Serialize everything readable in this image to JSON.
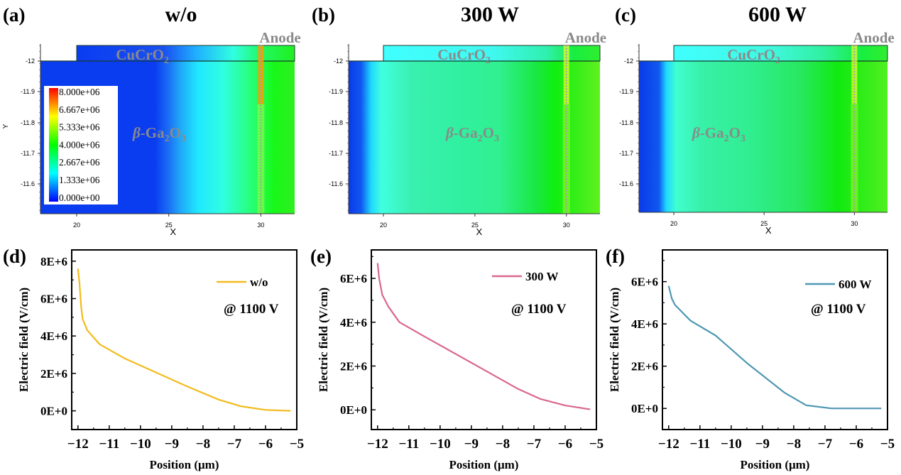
{
  "figure": {
    "panels_top": [
      {
        "label": "(a)",
        "title": "w/o",
        "material_top": "CuCrO",
        "material_top_sub": "2",
        "material_body_pre": "β-Ga",
        "material_body_sub1": "2",
        "material_body_mid": "O",
        "material_body_sub2": "3",
        "anode": "Anode"
      },
      {
        "label": "(b)",
        "title": "300 W",
        "material_top": "CuCrO",
        "material_top_sub": "2",
        "material_body_pre": "β-Ga",
        "material_body_sub1": "2",
        "material_body_mid": "O",
        "material_body_sub2": "3",
        "anode": "Anode"
      },
      {
        "label": "(c)",
        "title": "600 W",
        "material_top": "CuCrO",
        "material_top_sub": "2",
        "material_body_pre": "β-Ga",
        "material_body_sub1": "2",
        "material_body_mid": "O",
        "material_body_sub2": "3",
        "anode": "Anode"
      }
    ],
    "panels_bottom_labels": [
      "(d)",
      "(e)",
      "(f)"
    ],
    "contour_axes": {
      "xlabel": "X",
      "ylabel": "Y",
      "xticks": [
        "20",
        "25",
        "30"
      ],
      "yticks": [
        "-12",
        "-11.9",
        "-11.8",
        "-11.7",
        "-11.6"
      ]
    },
    "colorbar": {
      "labels": [
        "8.000e+06",
        "6.667e+06",
        "5.333e+06",
        "4.000e+06",
        "2.667e+06",
        "1.333e+06",
        "0.000e+00"
      ],
      "colors": [
        "#ff0000",
        "#ff8000",
        "#ffff00",
        "#80ff00",
        "#00ff00",
        "#00ff80",
        "#00ffff",
        "#0080ff",
        "#0000ff"
      ]
    }
  },
  "chart_data": [
    {
      "type": "line",
      "panel": "(d)",
      "title": "",
      "xlabel": "Position (μm)",
      "ylabel": "Electric field (V/cm)",
      "xlim": [
        -12.2,
        -5
      ],
      "ylim": [
        -1000000,
        8600000
      ],
      "xticks": [
        "−12",
        "−11",
        "−10",
        "−9",
        "−8",
        "−7",
        "−6",
        "−5"
      ],
      "xtick_values": [
        -12,
        -11,
        -10,
        -9,
        -8,
        -7,
        -6,
        -5
      ],
      "yticks": [
        "0E+0",
        "2E+6",
        "4E+6",
        "6E+6",
        "8E+6"
      ],
      "ytick_values": [
        0,
        2000000,
        4000000,
        6000000,
        8000000
      ],
      "annotation": "@ 1100 V",
      "legend_position": "top-right",
      "series": [
        {
          "name": "w/o",
          "color": "#f2bb1d",
          "x": [
            -12.0,
            -11.95,
            -11.9,
            -11.85,
            -11.7,
            -11.3,
            -10.5,
            -9.5,
            -8.5,
            -7.5,
            -6.8,
            -6.0,
            -5.2
          ],
          "y": [
            7600000,
            6800000,
            5600000,
            4900000,
            4300000,
            3550000,
            2800000,
            2050000,
            1300000,
            600000,
            250000,
            50000,
            0
          ]
        }
      ]
    },
    {
      "type": "line",
      "panel": "(e)",
      "title": "",
      "xlabel": "Position (μm)",
      "ylabel": "Electric field (V/cm)",
      "xlim": [
        -12.2,
        -5
      ],
      "ylim": [
        -900000,
        7300000
      ],
      "xticks": [
        "−12",
        "−11",
        "−10",
        "−9",
        "−8",
        "−7",
        "−6",
        "−5"
      ],
      "xtick_values": [
        -12,
        -11,
        -10,
        -9,
        -8,
        -7,
        -6,
        -5
      ],
      "yticks": [
        "0E+0",
        "2E+6",
        "4E+6",
        "6E+6"
      ],
      "ytick_values": [
        0,
        2000000,
        4000000,
        6000000
      ],
      "annotation": "@ 1100 V",
      "legend_position": "top-right",
      "series": [
        {
          "name": "300 W",
          "color": "#d9668f",
          "x": [
            -12.0,
            -11.95,
            -11.85,
            -11.65,
            -11.3,
            -10.5,
            -9.5,
            -8.5,
            -7.5,
            -6.8,
            -6.0,
            -5.2
          ],
          "y": [
            6700000,
            6000000,
            5250000,
            4700000,
            4000000,
            3350000,
            2550000,
            1750000,
            950000,
            500000,
            200000,
            20000
          ]
        }
      ]
    },
    {
      "type": "line",
      "panel": "(f)",
      "title": "",
      "xlabel": "Position (μm)",
      "ylabel": "Electric field (V/cm)",
      "xlim": [
        -12.2,
        -5
      ],
      "ylim": [
        -1000000,
        7500000
      ],
      "xticks": [
        "−12",
        "−11",
        "−10",
        "−9",
        "−8",
        "−7",
        "−6",
        "−5"
      ],
      "xtick_values": [
        -12,
        -11,
        -10,
        -9,
        -8,
        -7,
        -6,
        -5
      ],
      "yticks": [
        "0E+0",
        "2E+6",
        "4E+6",
        "6E+6"
      ],
      "ytick_values": [
        0,
        2000000,
        4000000,
        6000000
      ],
      "annotation": "@ 1100 V",
      "legend_position": "top-right",
      "series": [
        {
          "name": "600 W",
          "color": "#4f97b3",
          "x": [
            -12.0,
            -11.9,
            -11.8,
            -11.3,
            -10.5,
            -9.5,
            -8.3,
            -7.6,
            -6.8,
            -6.0,
            -5.2
          ],
          "y": [
            5800000,
            5200000,
            4900000,
            4150000,
            3450000,
            2150000,
            750000,
            150000,
            0,
            0,
            0
          ]
        }
      ]
    }
  ]
}
